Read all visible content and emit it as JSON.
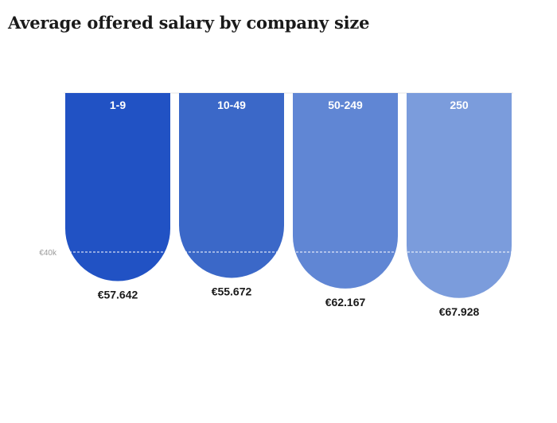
{
  "chart_data": {
    "type": "bar",
    "title": "Average offered salary by company size",
    "categories": [
      "1-9",
      "10-49",
      "50-249",
      "250"
    ],
    "values": [
      57642,
      55672,
      62167,
      67928
    ],
    "value_labels": [
      "€57.642",
      "€55.672",
      "€62.167",
      "€67.928"
    ],
    "reference_line": {
      "value": 40000,
      "label": "€40k"
    },
    "colors": [
      "#2152c4",
      "#3b68c8",
      "#6086d4",
      "#7b9cdc"
    ],
    "xlabel": "",
    "ylabel": "",
    "grid": false
  }
}
